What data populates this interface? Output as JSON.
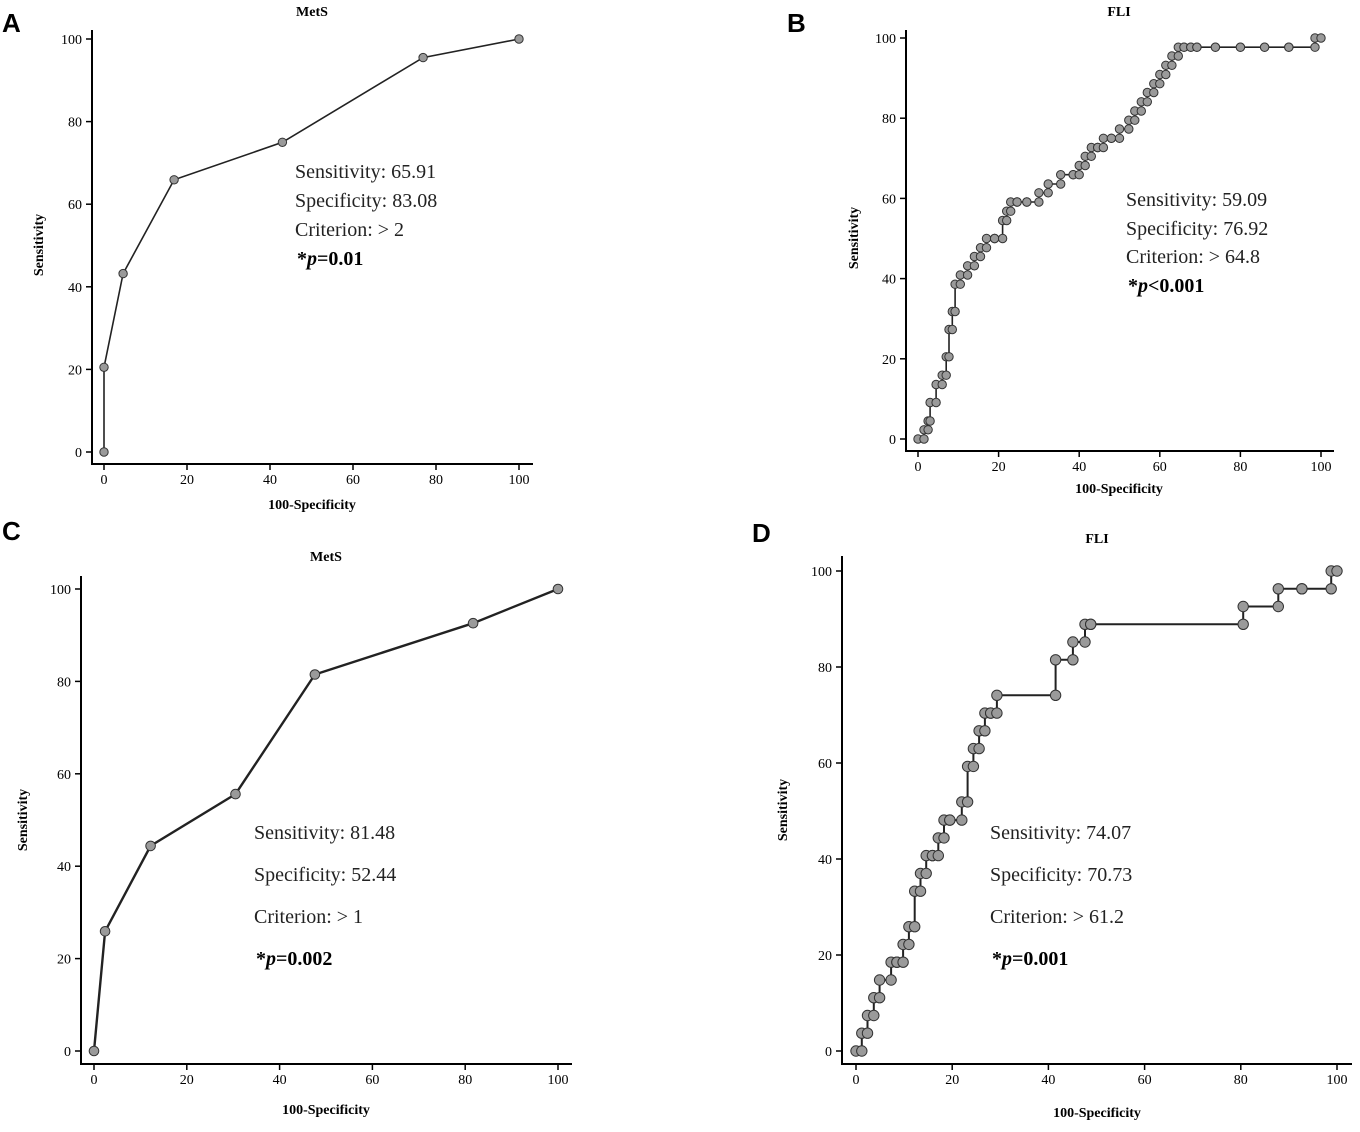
{
  "chart_data": [
    {
      "panel": "A",
      "type": "line",
      "title": "MetS",
      "xlabel": "100-Specificity",
      "ylabel": "Sensitivity",
      "xlim": [
        0,
        100
      ],
      "ylim": [
        0,
        100
      ],
      "xticks": [
        0,
        20,
        40,
        60,
        80,
        100
      ],
      "yticks": [
        0,
        20,
        40,
        60,
        80,
        100
      ],
      "x": [
        0,
        0,
        4.6,
        16.9,
        43,
        76.9,
        100
      ],
      "y": [
        0,
        20.5,
        43.2,
        65.9,
        75,
        95.5,
        100
      ],
      "annotations": [
        "Sensitivity: 65.91",
        "Specificity: 83.08",
        "Criterion: > 2"
      ],
      "p_star": "*",
      "p_letter": "p",
      "p_rest": "=0.01"
    },
    {
      "panel": "B",
      "type": "line",
      "title": "FLI",
      "xlabel": "100-Specificity",
      "ylabel": "Sensitivity",
      "xlim": [
        0,
        100
      ],
      "ylim": [
        0,
        100
      ],
      "xticks": [
        0,
        20,
        40,
        60,
        80,
        100
      ],
      "yticks": [
        0,
        20,
        40,
        60,
        80,
        100
      ],
      "x": [
        0,
        1.5,
        1.5,
        2.5,
        2.5,
        3,
        3,
        4.5,
        4.5,
        6,
        6,
        7,
        7,
        7.7,
        7.7,
        8.5,
        8.5,
        9.2,
        9.2,
        10.5,
        10.5,
        12.3,
        12.3,
        14,
        14,
        15.5,
        15.5,
        17,
        17,
        19,
        19,
        21,
        21,
        22,
        22,
        23,
        23,
        24.6,
        24.6,
        27,
        27,
        30,
        30,
        32.3,
        32.3,
        35.4,
        35.4,
        38.5,
        38.5,
        40,
        40,
        41.5,
        41.5,
        43,
        43,
        44.6,
        44.6,
        46,
        46,
        48,
        48,
        50,
        50,
        52.3,
        52.3,
        53.8,
        53.8,
        55.4,
        55.4,
        56.9,
        56.9,
        58.5,
        58.5,
        60,
        60,
        61.5,
        61.5,
        63,
        63,
        64.6,
        64.6,
        66,
        66,
        67.7,
        67.7,
        69.2,
        69.2,
        73.8,
        73.8,
        80,
        80,
        86,
        86,
        92,
        92,
        98.5,
        98.5,
        100
      ],
      "y": [
        0,
        0,
        2.3,
        2.3,
        4.5,
        4.5,
        9.1,
        9.1,
        13.6,
        13.6,
        15.9,
        15.9,
        20.5,
        20.5,
        27.3,
        27.3,
        31.8,
        31.8,
        38.6,
        38.6,
        40.9,
        40.9,
        43.2,
        43.2,
        45.5,
        45.5,
        47.7,
        47.7,
        50,
        50,
        50,
        50,
        54.5,
        54.5,
        56.8,
        56.8,
        59.1,
        59.1,
        59.1,
        59.1,
        59.1,
        59.1,
        61.4,
        61.4,
        63.6,
        63.6,
        65.9,
        65.9,
        65.9,
        65.9,
        68.2,
        68.2,
        70.5,
        70.5,
        72.7,
        72.7,
        72.7,
        72.7,
        75,
        75,
        75,
        75,
        77.3,
        77.3,
        79.5,
        79.5,
        81.8,
        81.8,
        84.1,
        84.1,
        86.4,
        86.4,
        88.6,
        88.6,
        90.9,
        90.9,
        93.2,
        93.2,
        95.5,
        95.5,
        97.7,
        97.7,
        97.7,
        97.7,
        97.7,
        97.7,
        97.7,
        97.7,
        97.7,
        97.7,
        97.7,
        97.7,
        97.7,
        97.7,
        97.7,
        97.7,
        100,
        100
      ],
      "annotations": [
        "Sensitivity: 59.09",
        "Specificity: 76.92",
        "Criterion: > 64.8"
      ],
      "p_star": "*",
      "p_letter": "p",
      "p_rest": "<0.001"
    },
    {
      "panel": "C",
      "type": "line",
      "title": "MetS",
      "xlabel": "100-Specificity",
      "ylabel": "Sensitivity",
      "xlim": [
        0,
        100
      ],
      "ylim": [
        0,
        100
      ],
      "xticks": [
        0,
        20,
        40,
        60,
        80,
        100
      ],
      "yticks": [
        0,
        20,
        40,
        60,
        80,
        100
      ],
      "x": [
        0,
        2.4,
        12.2,
        30.5,
        47.6,
        81.7,
        100
      ],
      "y": [
        0,
        25.9,
        44.4,
        55.6,
        81.5,
        92.6,
        100
      ],
      "annotations": [
        "Sensitivity: 81.48",
        "Specificity: 52.44",
        "Criterion: > 1"
      ],
      "p_star": "*",
      "p_letter": "p",
      "p_rest": "=0.002"
    },
    {
      "panel": "D",
      "type": "line",
      "title": "FLI",
      "xlabel": "100-Specificity",
      "ylabel": "Sensitivity",
      "xlim": [
        0,
        100
      ],
      "ylim": [
        0,
        100
      ],
      "xticks": [
        0,
        20,
        40,
        60,
        80,
        100
      ],
      "yticks": [
        0,
        20,
        40,
        60,
        80,
        100
      ],
      "x": [
        0,
        1.2,
        1.2,
        2.4,
        2.4,
        3.7,
        3.7,
        4.9,
        4.9,
        7.3,
        7.3,
        8.5,
        8.5,
        9.8,
        9.8,
        11,
        11,
        12.2,
        12.2,
        13.4,
        13.4,
        14.6,
        14.6,
        15.9,
        15.9,
        17.1,
        17.1,
        18.3,
        18.3,
        19.5,
        19.5,
        22,
        22,
        23.2,
        23.2,
        24.4,
        24.4,
        25.6,
        25.6,
        26.8,
        26.8,
        28,
        28,
        29.3,
        29.3,
        41.5,
        41.5,
        45.1,
        45.1,
        47.6,
        47.6,
        48.8,
        48.8,
        80.5,
        80.5,
        87.8,
        87.8,
        92.7,
        92.7,
        98.8,
        98.8,
        100
      ],
      "y": [
        0,
        0,
        3.7,
        3.7,
        7.4,
        7.4,
        11.1,
        11.1,
        14.8,
        14.8,
        18.5,
        18.5,
        18.5,
        18.5,
        22.2,
        22.2,
        25.9,
        25.9,
        33.3,
        33.3,
        37,
        37,
        40.7,
        40.7,
        40.7,
        40.7,
        44.4,
        44.4,
        48.1,
        48.1,
        48.1,
        48.1,
        51.9,
        51.9,
        59.3,
        59.3,
        63,
        63,
        66.7,
        66.7,
        70.4,
        70.4,
        70.4,
        70.4,
        74.1,
        74.1,
        81.5,
        81.5,
        85.2,
        85.2,
        88.9,
        88.9,
        88.9,
        88.9,
        92.6,
        92.6,
        96.3,
        96.3,
        96.3,
        96.3,
        100,
        100
      ],
      "annotations": [
        "Sensitivity: 74.07",
        "Specificity: 70.73",
        "Criterion: > 61.2"
      ],
      "p_star": "*",
      "p_letter": "p",
      "p_rest": "=0.001"
    }
  ]
}
